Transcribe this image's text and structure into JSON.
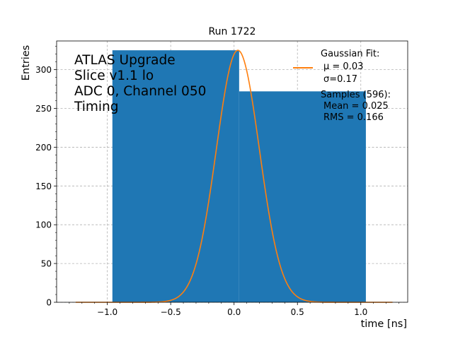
{
  "chart_data": {
    "type": "bar",
    "title": "Run 1722",
    "xlabel": "time [ns]",
    "ylabel": "Entries",
    "xlim": [
      -1.4,
      1.37
    ],
    "ylim": [
      0,
      337
    ],
    "grid": true,
    "x_ticks": [
      -1.0,
      -0.5,
      0.0,
      0.5,
      1.0
    ],
    "x_tick_labels": [
      "−1.0",
      "−0.5",
      "0.0",
      "0.5",
      "1.0"
    ],
    "y_ticks": [
      0,
      50,
      100,
      150,
      200,
      250,
      300
    ],
    "y_tick_labels": [
      "0",
      "50",
      "100",
      "150",
      "200",
      "250",
      "300"
    ],
    "bins": [
      {
        "x0": -0.96,
        "x1": 0.04,
        "value": 325
      },
      {
        "x0": 0.04,
        "x1": 1.04,
        "value": 272
      }
    ],
    "bar_color": "#1f77b4",
    "fit": {
      "name": "Gaussian Fit:",
      "mu": 0.03,
      "sigma": 0.17,
      "amplitude": 325,
      "x_range": [
        -1.25,
        1.25
      ],
      "color": "#ff7f0e"
    },
    "annotation_lines": [
      "ATLAS Upgrade",
      "Slice v1.1 lo",
      "ADC 0, Channel 050",
      "Timing"
    ],
    "legend": {
      "placement": "top-right",
      "fit_lines": [
        "Gaussian Fit:",
        "μ = 0.03",
        "σ=0.17"
      ],
      "sample_lines": [
        "Samples (596):",
        "Mean = 0.025",
        "RMS = 0.166"
      ]
    }
  }
}
